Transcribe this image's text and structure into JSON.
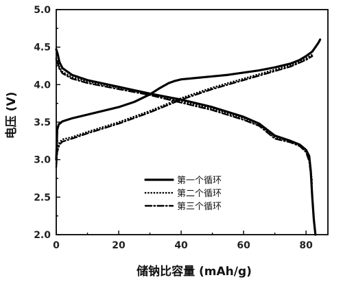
{
  "chart_data": {
    "type": "line",
    "xlabel": "储钠比容量 (mAh/g)",
    "ylabel": "电压 (V)",
    "xlim": [
      0,
      87
    ],
    "ylim": [
      2.0,
      5.0
    ],
    "x_ticks": [
      0,
      20,
      40,
      60,
      80
    ],
    "y_ticks": [
      2.0,
      2.5,
      3.0,
      3.5,
      4.0,
      4.5,
      5.0
    ],
    "legend_position": "lower-center",
    "grid": false,
    "series": [
      {
        "name": "第一个循环",
        "style": "solid",
        "charge": {
          "x": [
            0,
            0.3,
            0.8,
            2,
            5,
            10,
            15,
            20,
            25,
            30,
            33,
            36,
            38,
            40,
            45,
            50,
            55,
            60,
            65,
            70,
            75,
            78,
            80,
            82,
            83,
            84,
            84.5
          ],
          "y": [
            3.0,
            3.4,
            3.47,
            3.51,
            3.55,
            3.6,
            3.65,
            3.7,
            3.77,
            3.87,
            3.95,
            4.02,
            4.05,
            4.07,
            4.09,
            4.11,
            4.13,
            4.16,
            4.19,
            4.23,
            4.28,
            4.33,
            4.38,
            4.44,
            4.5,
            4.56,
            4.6
          ]
        },
        "discharge": {
          "x": [
            0,
            0.5,
            1,
            2,
            5,
            10,
            20,
            30,
            40,
            50,
            60,
            65,
            70,
            75,
            78,
            80,
            81,
            81.5,
            82,
            82.5,
            83
          ],
          "y": [
            4.47,
            4.4,
            4.3,
            4.22,
            4.13,
            4.06,
            3.97,
            3.88,
            3.8,
            3.7,
            3.57,
            3.48,
            3.32,
            3.25,
            3.2,
            3.13,
            3.05,
            2.85,
            2.5,
            2.2,
            2.0
          ]
        }
      },
      {
        "name": "第二个循环",
        "style": "dotted",
        "charge": {
          "x": [
            0,
            0.3,
            1,
            2,
            5,
            10,
            20,
            30,
            40,
            50,
            60,
            70,
            75,
            80,
            82
          ],
          "y": [
            2.95,
            3.15,
            3.23,
            3.27,
            3.3,
            3.37,
            3.5,
            3.65,
            3.82,
            3.96,
            4.08,
            4.2,
            4.26,
            4.35,
            4.4
          ]
        },
        "discharge": {
          "x": [
            0,
            0.5,
            1,
            2,
            5,
            10,
            20,
            30,
            40,
            50,
            60,
            65,
            70,
            75,
            78,
            80,
            81,
            82
          ],
          "y": [
            4.35,
            4.3,
            4.23,
            4.17,
            4.1,
            4.04,
            3.96,
            3.88,
            3.78,
            3.68,
            3.55,
            3.47,
            3.3,
            3.25,
            3.2,
            3.12,
            3.0,
            2.7
          ]
        }
      },
      {
        "name": "第三个循环",
        "style": "dashdot",
        "charge": {
          "x": [
            0,
            0.3,
            1,
            2,
            5,
            10,
            20,
            30,
            40,
            50,
            60,
            70,
            75,
            80,
            82
          ],
          "y": [
            2.9,
            3.1,
            3.2,
            3.24,
            3.28,
            3.35,
            3.48,
            3.63,
            3.8,
            3.94,
            4.06,
            4.18,
            4.24,
            4.33,
            4.38
          ]
        },
        "discharge": {
          "x": [
            0,
            0.5,
            1,
            2,
            5,
            10,
            20,
            30,
            40,
            50,
            60,
            65,
            70,
            75,
            78,
            80,
            81,
            82
          ],
          "y": [
            4.33,
            4.28,
            4.21,
            4.15,
            4.08,
            4.02,
            3.94,
            3.86,
            3.76,
            3.66,
            3.53,
            3.45,
            3.28,
            3.23,
            3.18,
            3.1,
            2.98,
            2.65
          ]
        }
      }
    ]
  }
}
